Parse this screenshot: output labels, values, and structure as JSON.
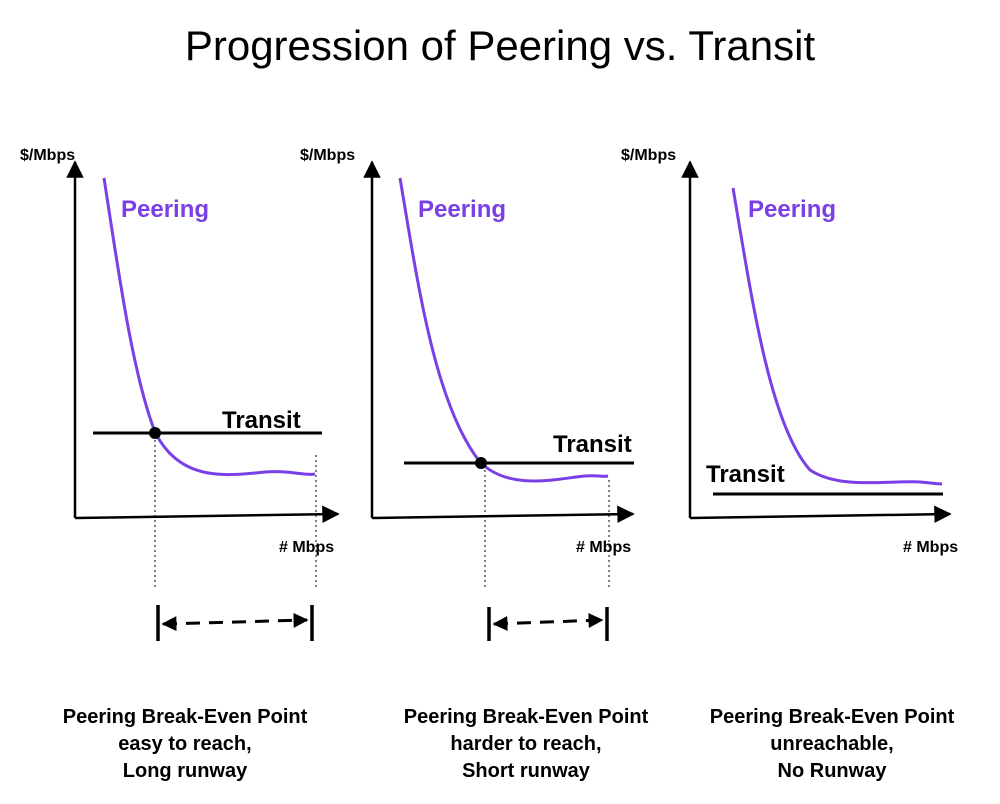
{
  "title": "Progression of Peering vs. Transit",
  "colors": {
    "peering": "#7a3fe6",
    "transit": "#000000",
    "axes": "#000000"
  },
  "panels": [
    {
      "y_label": "$/Mbps",
      "x_label": "# Mbps",
      "peering_label": "Peering",
      "transit_label": "Transit",
      "break_even_reachable": true,
      "runway": "Long",
      "caption": [
        "Peering Break-Even Point",
        "easy to reach,",
        "Long runway"
      ]
    },
    {
      "y_label": "$/Mbps",
      "x_label": "# Mbps",
      "peering_label": "Peering",
      "transit_label": "Transit",
      "break_even_reachable": true,
      "runway": "Short",
      "caption": [
        "Peering Break-Even Point",
        "harder to reach,",
        "Short runway"
      ]
    },
    {
      "y_label": "$/Mbps",
      "x_label": "# Mbps",
      "peering_label": "Peering",
      "transit_label": "Transit",
      "break_even_reachable": false,
      "runway": "None",
      "caption": [
        "Peering Break-Even Point",
        "unreachable,",
        "No Runway"
      ]
    }
  ]
}
